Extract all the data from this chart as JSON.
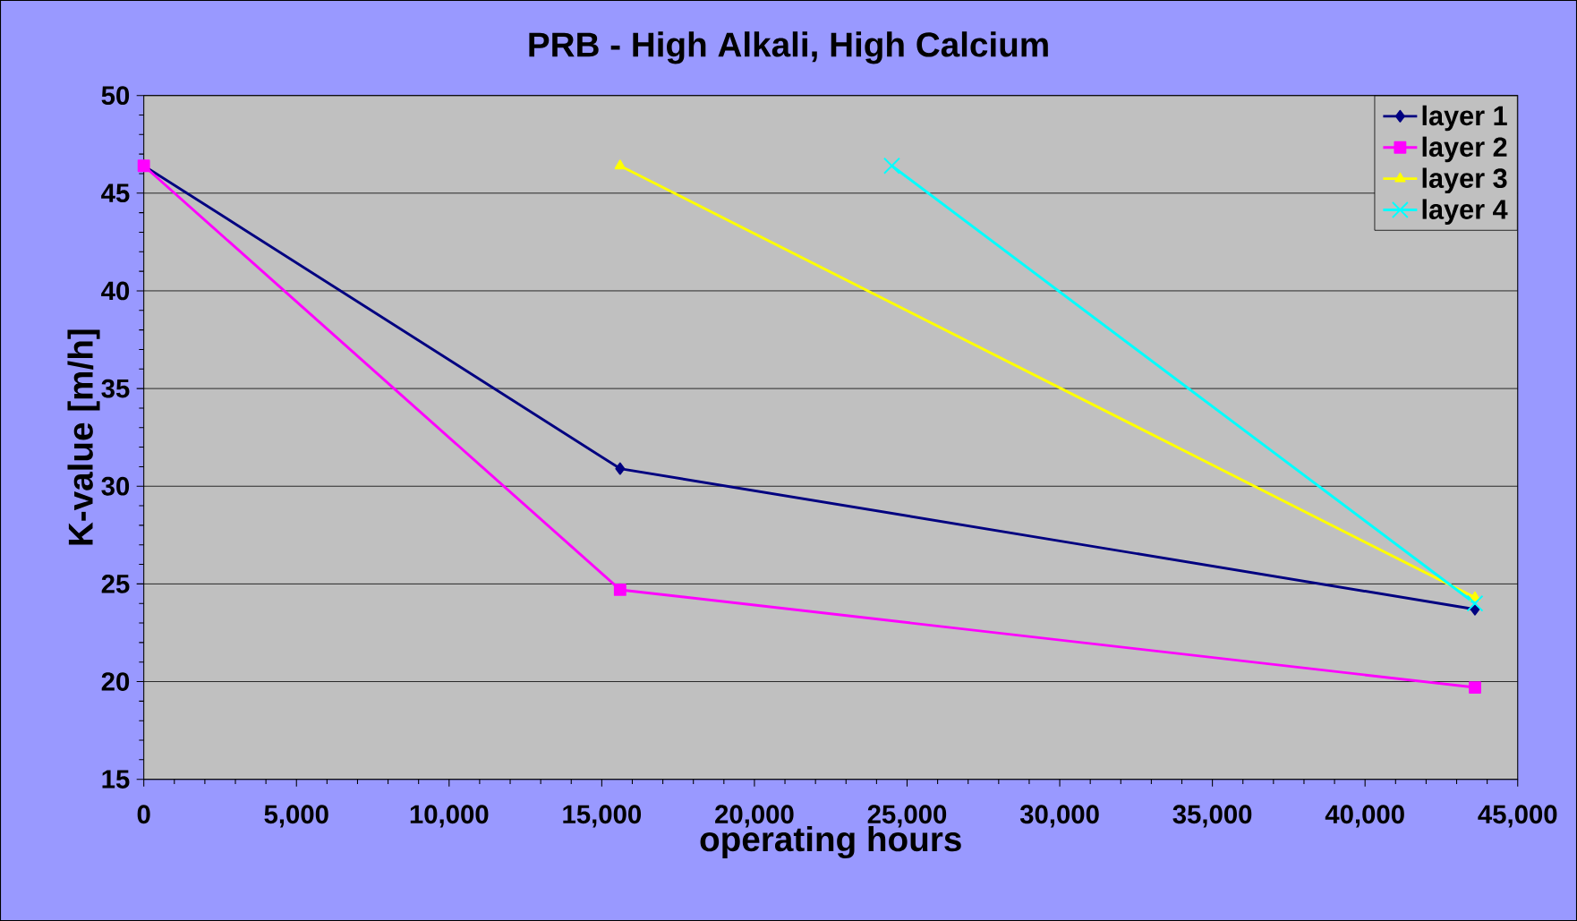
{
  "chart_data": {
    "type": "line",
    "title": "PRB - High Alkali, High Calcium",
    "xlabel": "operating hours",
    "ylabel": "K-value [m/h]",
    "xlim": [
      0,
      45000
    ],
    "ylim": [
      15,
      50
    ],
    "xticks": [
      0,
      {
        "value": 5000,
        "label": "5,000"
      },
      {
        "value": 10000,
        "label": "10,000"
      },
      {
        "value": 15000,
        "label": "15,000"
      },
      {
        "value": 20000,
        "label": "20,000"
      },
      {
        "value": 25000,
        "label": "25,000"
      },
      {
        "value": 30000,
        "label": "30,000"
      },
      {
        "value": 35000,
        "label": "35,000"
      },
      {
        "value": 40000,
        "label": "40,000"
      },
      {
        "value": 45000,
        "label": "45,000"
      }
    ],
    "yticks": [
      15,
      20,
      25,
      30,
      35,
      40,
      45,
      50
    ],
    "grid": "y",
    "legend": "top right",
    "line_style": "solid",
    "series": [
      {
        "name": "layer 1",
        "color": "#000080",
        "marker": "diamond",
        "x": [
          0,
          15600,
          43600
        ],
        "values": [
          46.4,
          30.9,
          23.7
        ]
      },
      {
        "name": "layer 2",
        "color": "#ff00ff",
        "marker": "square",
        "x": [
          0,
          15600,
          43600
        ],
        "values": [
          46.4,
          24.7,
          19.7
        ]
      },
      {
        "name": "layer 3",
        "color": "#ffff00",
        "marker": "triangle",
        "x": [
          15600,
          43600
        ],
        "values": [
          46.4,
          24.3
        ]
      },
      {
        "name": "layer 4",
        "color": "#00ffff",
        "marker": "cross",
        "x": [
          24500,
          43600
        ],
        "values": [
          46.4,
          24.0
        ]
      }
    ]
  }
}
